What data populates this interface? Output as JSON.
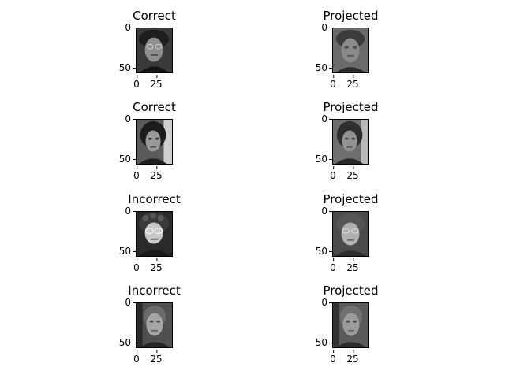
{
  "figure": {
    "rows": [
      {
        "left": {
          "title": "Correct",
          "yticks": [
            "0",
            "50"
          ],
          "xticks": [
            "0",
            "25"
          ]
        },
        "right": {
          "title": "Projected",
          "yticks": [
            "0",
            "50"
          ],
          "xticks": [
            "0",
            "25"
          ]
        }
      },
      {
        "left": {
          "title": "Correct",
          "yticks": [
            "0",
            "50"
          ],
          "xticks": [
            "0",
            "25"
          ]
        },
        "right": {
          "title": "Projected",
          "yticks": [
            "0",
            "50"
          ],
          "xticks": [
            "0",
            "25"
          ]
        }
      },
      {
        "left": {
          "title": "Incorrect",
          "yticks": [
            "0",
            "50"
          ],
          "xticks": [
            "0",
            "25"
          ]
        },
        "right": {
          "title": "Projected",
          "yticks": [
            "0",
            "50"
          ],
          "xticks": [
            "0",
            "25"
          ]
        }
      },
      {
        "left": {
          "title": "Incorrect",
          "yticks": [
            "0",
            "50"
          ],
          "xticks": [
            "0",
            "25"
          ]
        },
        "right": {
          "title": "Projected",
          "yticks": [
            "0",
            "50"
          ],
          "xticks": [
            "0",
            "25"
          ]
        }
      }
    ]
  },
  "colors": {
    "background": "#ffffff",
    "axis": "#000000",
    "image_palette": "grayscale"
  }
}
